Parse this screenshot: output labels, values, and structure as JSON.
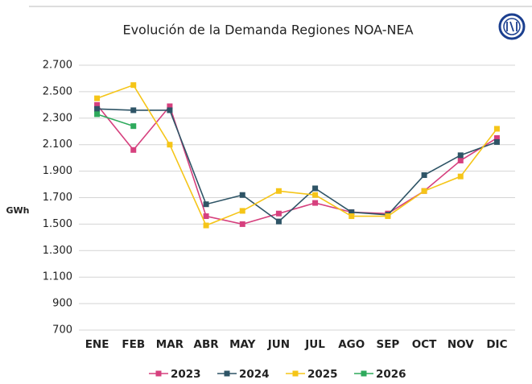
{
  "chart_data": {
    "type": "line",
    "title": "Evolución de la Demanda Regiones NOA-NEA",
    "y_label": "GWh",
    "categories": [
      "ENE",
      "FEB",
      "MAR",
      "ABR",
      "MAY",
      "JUN",
      "JUL",
      "AGO",
      "SEP",
      "OCT",
      "NOV",
      "DIC"
    ],
    "series": [
      {
        "name": "2023",
        "color": "#d6407e",
        "values": [
          2400,
          2060,
          2390,
          1560,
          1500,
          1580,
          1660,
          1590,
          1580,
          1750,
          1980,
          2150
        ]
      },
      {
        "name": "2024",
        "color": "#2e5466",
        "values": [
          2370,
          2360,
          2360,
          1650,
          1720,
          1520,
          1770,
          1590,
          1570,
          1870,
          2020,
          2120
        ]
      },
      {
        "name": "2025",
        "color": "#f5c518",
        "values": [
          2450,
          2550,
          2100,
          1490,
          1600,
          1750,
          1720,
          1560,
          1560,
          1750,
          1860,
          2220
        ]
      },
      {
        "name": "2026",
        "color": "#2eaa5c",
        "values": [
          2330,
          2240,
          null,
          null,
          null,
          null,
          null,
          null,
          null,
          null,
          null,
          null
        ]
      }
    ],
    "ylim": [
      700,
      2700
    ],
    "yticks": [
      700,
      900,
      {
        "value": 1100,
        "label": "1.100"
      },
      {
        "value": 1300,
        "label": "1.300"
      },
      {
        "value": 1500,
        "label": "1.500"
      },
      {
        "value": 1700,
        "label": "1.700"
      },
      {
        "value": 1900,
        "label": "1.900"
      },
      {
        "value": 2100,
        "label": "2.100"
      },
      {
        "value": 2300,
        "label": "2.300"
      },
      {
        "value": 2500,
        "label": "2.500"
      },
      {
        "value": 2700,
        "label": "2.700"
      }
    ],
    "grid": true,
    "legend": "bottom"
  }
}
